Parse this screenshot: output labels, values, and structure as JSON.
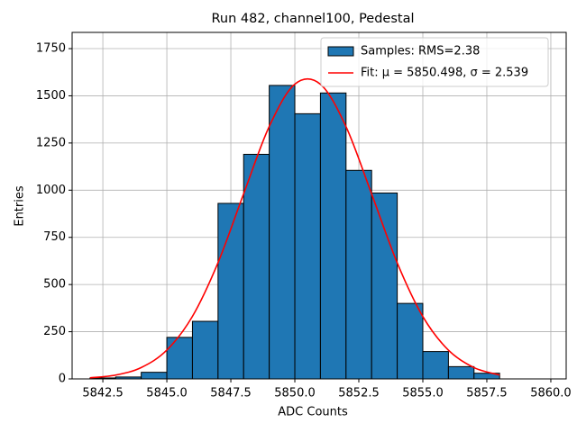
{
  "chart_data": {
    "type": "histogram",
    "title": "Run 482, channel100, Pedestal",
    "xlabel": "ADC Counts",
    "ylabel": "Entries",
    "xlim": [
      5841.3,
      5860.6
    ],
    "ylim": [
      0,
      1836
    ],
    "xticks": [
      5842.5,
      {
        "value": 5845,
        "label": "5845.0"
      },
      5847.5,
      {
        "value": 5850,
        "label": "5850.0"
      },
      5852.5,
      {
        "value": 5855,
        "label": "5855.0"
      },
      5857.5,
      {
        "value": 5860,
        "label": "5860.0"
      }
    ],
    "yticks": [
      0,
      250,
      500,
      750,
      1000,
      1250,
      1500,
      1750
    ],
    "grid": true,
    "legend": "upper right",
    "series": [
      {
        "name": "Samples: RMS=2.38",
        "type": "histogram",
        "color": "#1f77b4",
        "bins": [
          5842,
          5843,
          5844,
          5845,
          5846,
          5847,
          5848,
          5849,
          5850,
          5851,
          5852,
          5853,
          5854,
          5855,
          5856,
          5857,
          5858
        ],
        "values": [
          5,
          10,
          35,
          220,
          305,
          930,
          1190,
          1555,
          1405,
          1515,
          1105,
          985,
          400,
          145,
          65,
          30
        ]
      },
      {
        "name": "Fit: μ = 5850.498, σ = 2.539",
        "type": "line",
        "color": "#ff0000",
        "x": [
          5842,
          5843,
          5844,
          5845,
          5846,
          5847,
          5848,
          5849,
          5850,
          5851,
          5852,
          5853,
          5854,
          5855,
          5856,
          5857,
          5858
        ],
        "values": [
          5.9,
          20.3,
          60.2,
          152.7,
          331.5,
          616.3,
          981.1,
          1337.6,
          1561.6,
          1561.1,
          1336.5,
          979.7,
          615.0,
          330.5,
          152.2,
          59.9,
          20.2
        ]
      }
    ]
  }
}
